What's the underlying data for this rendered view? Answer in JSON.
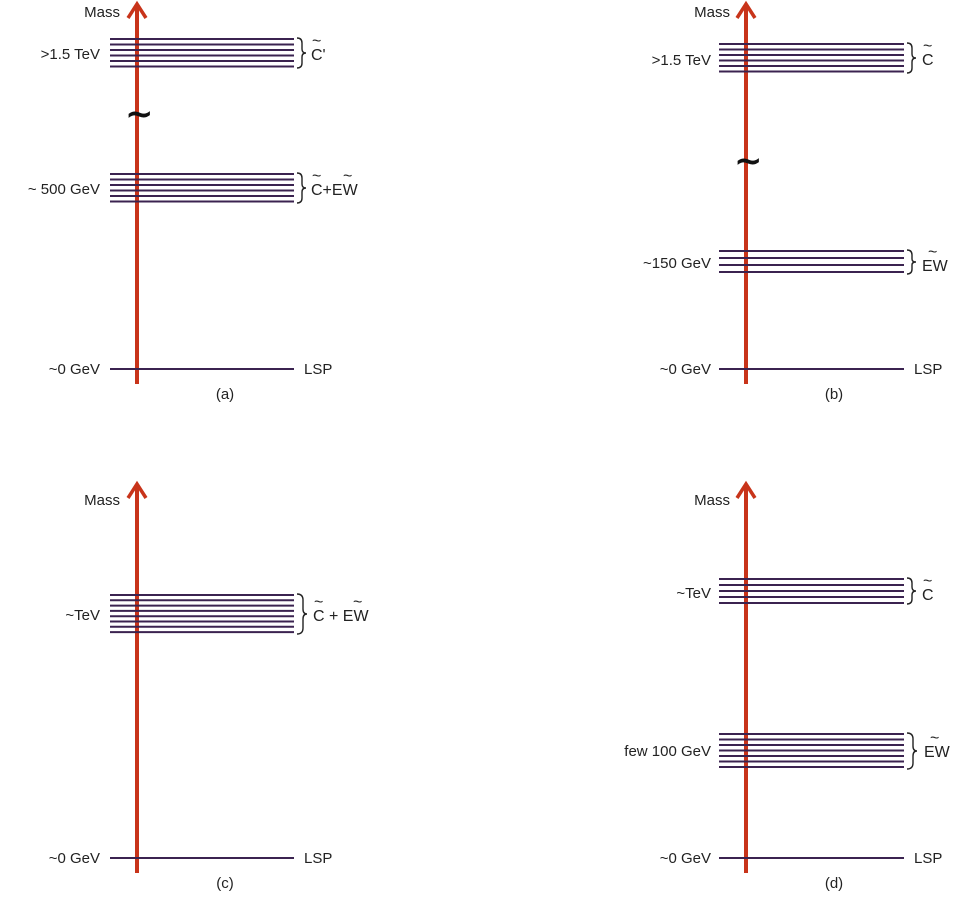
{
  "colors": {
    "axis": "#c8341a",
    "level": "#3b2350",
    "text": "#222222"
  },
  "panels": [
    {
      "id": "a",
      "axis_label": "Mass",
      "caption": "(a)",
      "break_mark": "~",
      "groups": [
        {
          "mass_label": ">1.5 TeV",
          "line_count": 6,
          "particle_main": "C",
          "particle_suffix": "'",
          "particle_text": "C'"
        },
        {
          "mass_label": "~ 500 GeV",
          "line_count": 6,
          "particle_main": "C",
          "particle_suffix": "+EW",
          "particle_text": "C+EW"
        },
        {
          "mass_label": "~0 GeV",
          "line_count": 1,
          "particle_text": "LSP"
        }
      ]
    },
    {
      "id": "b",
      "axis_label": "Mass",
      "caption": "(b)",
      "break_mark": "~",
      "groups": [
        {
          "mass_label": ">1.5 TeV",
          "line_count": 6,
          "particle_text": "C"
        },
        {
          "mass_label": "~150 GeV",
          "line_count": 4,
          "particle_text": "EW"
        },
        {
          "mass_label": "~0 GeV",
          "line_count": 1,
          "particle_text": "LSP"
        }
      ]
    },
    {
      "id": "c",
      "axis_label": "Mass",
      "caption": "(c)",
      "groups": [
        {
          "mass_label": "~TeV",
          "line_count": 8,
          "particle_text": "C + EW"
        },
        {
          "mass_label": "~0 GeV",
          "line_count": 1,
          "particle_text": "LSP"
        }
      ]
    },
    {
      "id": "d",
      "axis_label": "Mass",
      "caption": "(d)",
      "groups": [
        {
          "mass_label": "~TeV",
          "line_count": 5,
          "particle_text": "C"
        },
        {
          "mass_label": "few 100 GeV",
          "line_count": 7,
          "particle_text": "EW"
        },
        {
          "mass_label": "~0 GeV",
          "line_count": 1,
          "particle_text": "LSP"
        }
      ]
    }
  ]
}
